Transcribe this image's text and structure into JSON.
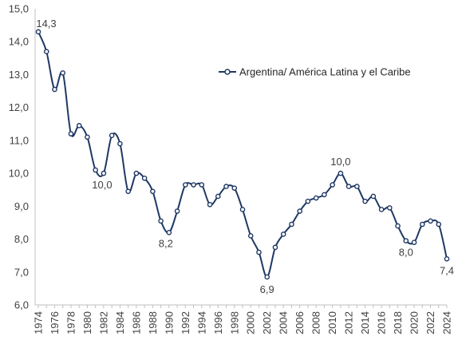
{
  "chart_data": {
    "type": "line",
    "title": "",
    "xlabel": "",
    "ylabel": "",
    "ylim": [
      6.0,
      15.0
    ],
    "yticks": [
      "6,0",
      "7,0",
      "8,0",
      "9,0",
      "10,0",
      "11,0",
      "12,0",
      "13,0",
      "14,0",
      "15,0"
    ],
    "x": [
      1974,
      1975,
      1976,
      1977,
      1978,
      1979,
      1980,
      1981,
      1982,
      1983,
      1984,
      1985,
      1986,
      1987,
      1988,
      1989,
      1990,
      1991,
      1992,
      1993,
      1994,
      1995,
      1996,
      1997,
      1998,
      1999,
      2000,
      2001,
      2002,
      2003,
      2004,
      2005,
      2006,
      2007,
      2008,
      2009,
      2010,
      2011,
      2012,
      2013,
      2014,
      2015,
      2016,
      2017,
      2018,
      2019,
      2020,
      2021,
      2022,
      2023,
      2024
    ],
    "xticks": [
      "1974",
      "1976",
      "1978",
      "1980",
      "1982",
      "1984",
      "1986",
      "1988",
      "1990",
      "1992",
      "1994",
      "1996",
      "1998",
      "2000",
      "2002",
      "2004",
      "2006",
      "2008",
      "2010",
      "2012",
      "2014",
      "2016",
      "2018",
      "2020",
      "2022",
      "2024"
    ],
    "series": [
      {
        "name": "Argentina/ América Latina y el Caribe",
        "color": "#1f3864",
        "values": [
          14.3,
          13.7,
          12.55,
          13.05,
          11.2,
          11.45,
          11.1,
          10.1,
          10.0,
          11.15,
          10.9,
          9.45,
          10.0,
          9.85,
          9.45,
          8.55,
          8.2,
          8.85,
          9.65,
          9.65,
          9.65,
          9.05,
          9.3,
          9.6,
          9.55,
          8.9,
          8.1,
          7.6,
          6.85,
          7.75,
          8.15,
          8.45,
          8.85,
          9.15,
          9.25,
          9.35,
          9.65,
          10.0,
          9.6,
          9.6,
          9.15,
          9.3,
          8.9,
          8.95,
          8.4,
          7.95,
          7.9,
          8.45,
          8.55,
          8.45,
          7.4
        ]
      }
    ],
    "annotations": [
      {
        "x": 1974,
        "text": "14,3"
      },
      {
        "x": 1982,
        "text": "10,0"
      },
      {
        "x": 1990,
        "text": "8,2"
      },
      {
        "x": 2002,
        "text": "6,9"
      },
      {
        "x": 2011,
        "text": "10,0"
      },
      {
        "x": 2019,
        "text": "8,0"
      },
      {
        "x": 2024,
        "text": "7,4"
      }
    ],
    "grid": false,
    "legend_position": "top-right"
  }
}
